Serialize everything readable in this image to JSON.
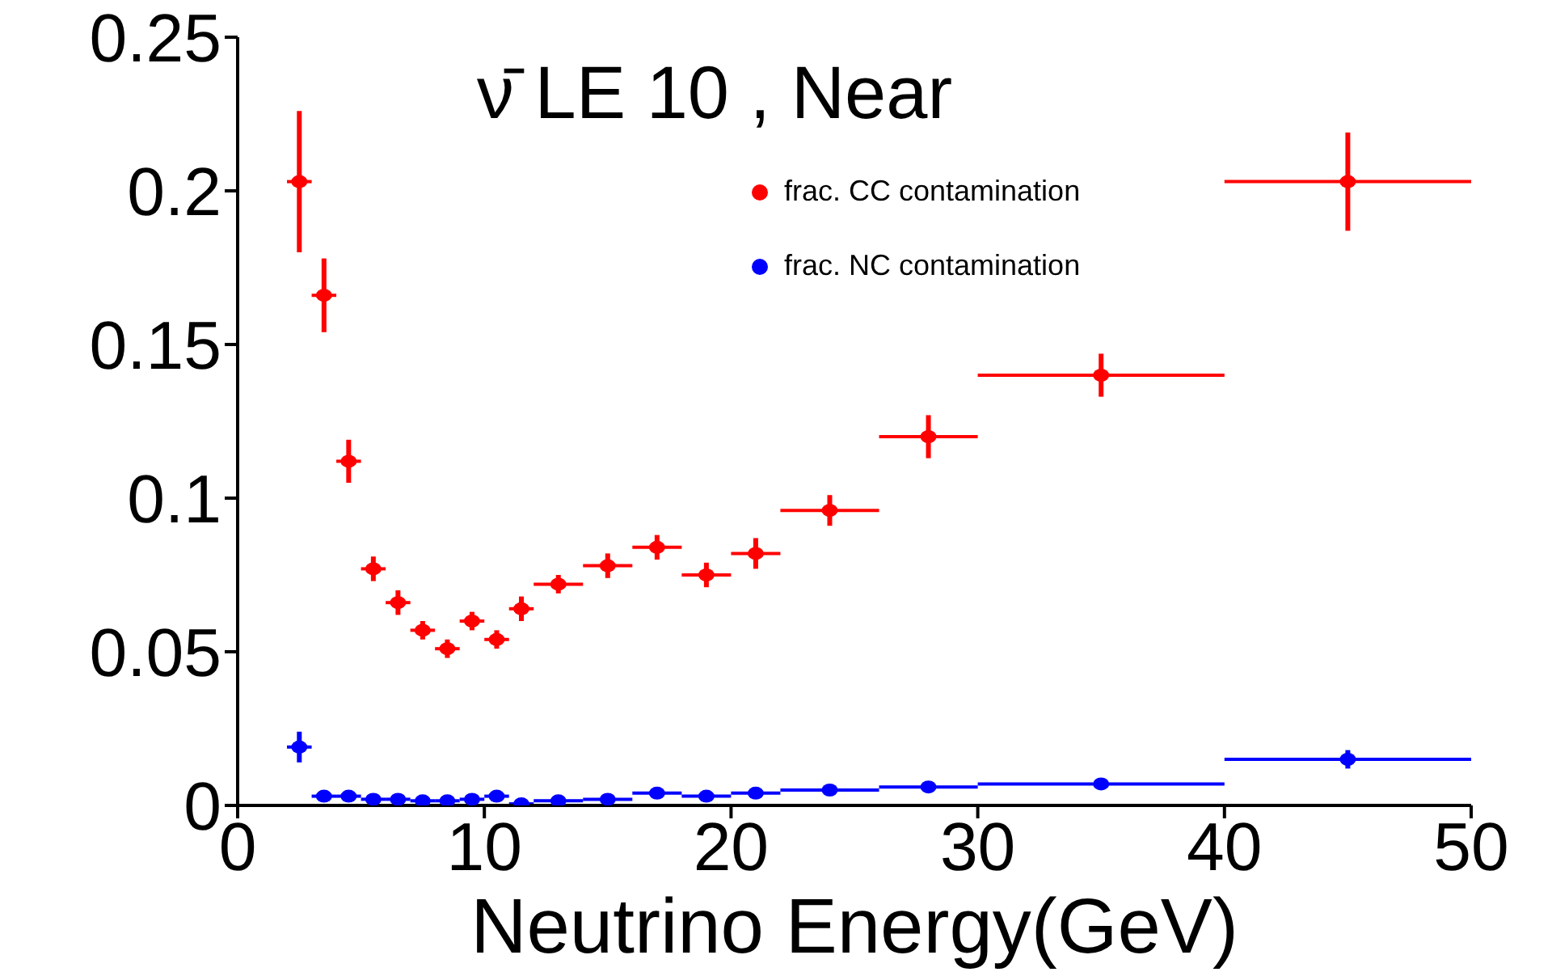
{
  "chart_data": {
    "type": "scatter",
    "title": "ν̄ LE 10 , Near",
    "xlabel": "Neutrino Energy(GeV)",
    "xlim": [
      0,
      50
    ],
    "xticks": [
      0,
      10,
      20,
      30,
      40,
      50
    ],
    "ylim": [
      0,
      0.25
    ],
    "yticks": [
      0,
      0.05,
      0.1,
      0.15,
      0.2,
      0.25
    ],
    "grid": false,
    "legend": "top right",
    "marker": "circle",
    "x": [
      2.5,
      3.5,
      4.5,
      5.5,
      6.5,
      7.5,
      8.5,
      9.5,
      10.5,
      11.5,
      13,
      15,
      17,
      19,
      21,
      24,
      28,
      35,
      45
    ],
    "series": [
      {
        "name": "frac. CC contamination",
        "color": "#ff0000",
        "values": [
          0.203,
          0.166,
          0.112,
          0.077,
          0.066,
          0.057,
          0.051,
          0.06,
          0.054,
          0.064,
          0.072,
          0.078,
          0.084,
          0.075,
          0.082,
          0.096,
          0.12,
          0.14,
          0.203
        ],
        "errors": [
          0.023,
          0.012,
          0.007,
          0.004,
          0.004,
          0.003,
          0.003,
          0.003,
          0.003,
          0.004,
          0.003,
          0.004,
          0.004,
          0.004,
          0.005,
          0.005,
          0.007,
          0.007,
          0.016
        ],
        "xerrors": [
          0.5,
          0.5,
          0.5,
          0.5,
          0.5,
          0.5,
          0.5,
          0.5,
          0.5,
          0.5,
          1,
          1,
          1,
          1,
          1,
          2,
          2,
          5,
          5
        ]
      },
      {
        "name": "frac. NC contamination",
        "color": "#0000ff",
        "values": [
          0.019,
          0.003,
          0.003,
          0.002,
          0.002,
          0.0015,
          0.0015,
          0.002,
          0.003,
          0.0005,
          0.0015,
          0.002,
          0.004,
          0.003,
          0.004,
          0.005,
          0.006,
          0.007,
          0.015
        ],
        "errors": [
          0.005,
          null,
          null,
          null,
          null,
          null,
          null,
          null,
          null,
          null,
          null,
          null,
          null,
          null,
          null,
          null,
          null,
          null,
          0.003
        ],
        "xerrors": [
          0.5,
          0.5,
          0.5,
          0.5,
          0.5,
          0.5,
          0.5,
          0.5,
          0.5,
          0.5,
          1,
          1,
          1,
          1,
          1,
          2,
          2,
          5,
          5
        ]
      }
    ]
  }
}
